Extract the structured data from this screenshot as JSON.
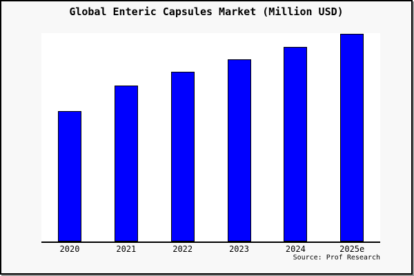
{
  "frame": {
    "background_color": "#f8f8f8",
    "plot_background_color": "#ffffff",
    "border_color": "#000000"
  },
  "chart_data": {
    "type": "bar",
    "title": "Global Enteric Capsules Market (Million USD)",
    "categories": [
      "2020",
      "2021",
      "2022",
      "2023",
      "2024",
      "2025e"
    ],
    "values": [
      188,
      225,
      245,
      263,
      281,
      300
    ],
    "unit": "Million USD",
    "xlabel": "",
    "ylabel": "",
    "ylim": [
      0,
      301
    ],
    "grid": false,
    "y_axis_visible": false,
    "legend": "none",
    "bar_color": "#0000ff",
    "bar_edge_color": "#000000",
    "source_note": "Source: Prof Research"
  }
}
